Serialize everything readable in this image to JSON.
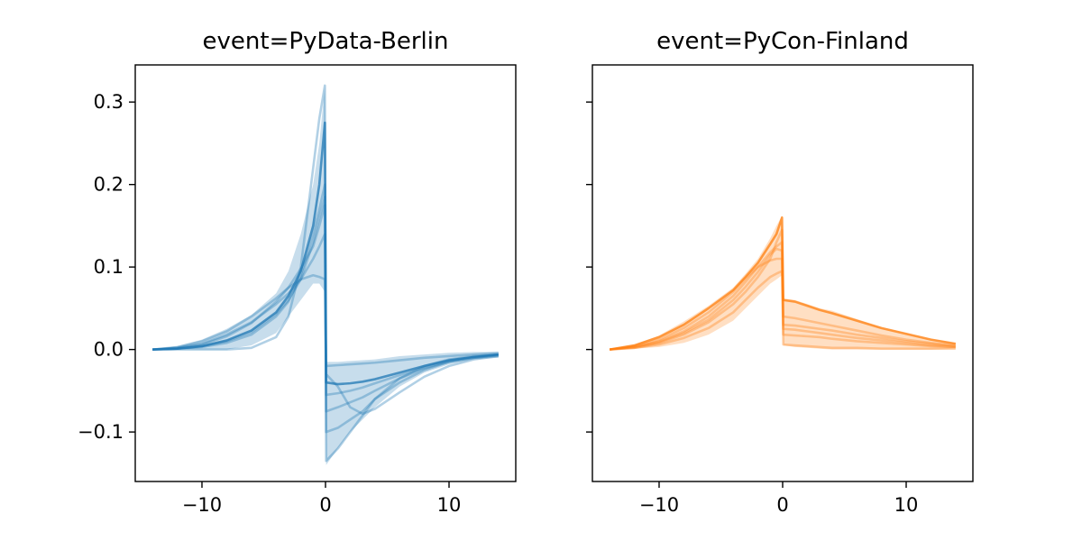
{
  "chart_data": [
    {
      "type": "line",
      "title": "event=PyData-Berlin",
      "xlabel": "",
      "ylabel": "",
      "color": "#1f77b4",
      "xlim": [
        -15.4,
        15.4
      ],
      "ylim": [
        -0.16,
        0.345
      ],
      "xticks": [
        -10,
        0,
        10
      ],
      "xtick_labels": [
        "−10",
        "0",
        "10"
      ],
      "yticks": [
        -0.1,
        0.0,
        0.1,
        0.2,
        0.3
      ],
      "ytick_labels": [
        "−0.1",
        "0.0",
        "0.1",
        "0.2",
        "0.3"
      ],
      "band": {
        "x": [
          -14,
          -12,
          -10,
          -8,
          -6,
          -4,
          -3,
          -2,
          -1,
          -0.5,
          -0.05,
          0.05,
          1,
          2,
          3,
          4,
          6,
          8,
          10,
          12,
          14
        ],
        "lower": [
          0,
          0,
          0,
          0,
          0.005,
          0.02,
          0.04,
          0.06,
          0.08,
          0.08,
          0.07,
          -0.14,
          -0.12,
          -0.1,
          -0.085,
          -0.07,
          -0.045,
          -0.028,
          -0.018,
          -0.012,
          -0.01
        ],
        "upper": [
          0.0005,
          0.004,
          0.012,
          0.025,
          0.042,
          0.068,
          0.095,
          0.14,
          0.2,
          0.25,
          0.32,
          -0.015,
          -0.015,
          -0.014,
          -0.013,
          -0.012,
          -0.008,
          -0.006,
          -0.004,
          -0.003,
          -0.003
        ]
      },
      "series": [
        {
          "x": [
            -14,
            -12,
            -10,
            -8,
            -6,
            -4,
            -3,
            -2,
            -1,
            -0.5,
            -0.05,
            0.05,
            1,
            2,
            3,
            4,
            6,
            8,
            10,
            12,
            14
          ],
          "y": [
            0,
            0.001,
            0.004,
            0.011,
            0.023,
            0.045,
            0.065,
            0.095,
            0.15,
            0.2,
            0.275,
            -0.04,
            -0.042,
            -0.041,
            -0.039,
            -0.036,
            -0.028,
            -0.02,
            -0.013,
            -0.009,
            -0.006
          ]
        },
        {
          "x": [
            -14,
            -12,
            -10,
            -8,
            -6,
            -4,
            -3,
            -2,
            -1,
            -0.5,
            -0.05,
            0.05,
            1,
            2,
            3,
            4,
            6,
            8,
            10,
            12,
            14
          ],
          "y": [
            0,
            0,
            0,
            0,
            0.002,
            0.015,
            0.04,
            0.1,
            0.22,
            0.28,
            0.32,
            -0.135,
            -0.12,
            -0.1,
            -0.08,
            -0.06,
            -0.035,
            -0.02,
            -0.012,
            -0.008,
            -0.006
          ]
        },
        {
          "x": [
            -14,
            -12,
            -10,
            -8,
            -6,
            -4,
            -3,
            -2,
            -1,
            -0.5,
            -0.05,
            0.05,
            1,
            2,
            3,
            4,
            6,
            8,
            10,
            12,
            14
          ],
          "y": [
            0,
            0.003,
            0.01,
            0.022,
            0.04,
            0.062,
            0.075,
            0.085,
            0.09,
            0.088,
            0.085,
            -0.02,
            -0.019,
            -0.018,
            -0.017,
            -0.016,
            -0.013,
            -0.01,
            -0.008,
            -0.006,
            -0.004
          ]
        },
        {
          "x": [
            -14,
            -12,
            -10,
            -8,
            -6,
            -4,
            -3,
            -2,
            -1,
            -0.5,
            -0.05,
            0.05,
            1,
            2,
            3,
            4,
            6,
            8,
            10,
            12,
            14
          ],
          "y": [
            0,
            0.002,
            0.006,
            0.016,
            0.032,
            0.058,
            0.075,
            0.098,
            0.125,
            0.15,
            0.175,
            -0.075,
            -0.07,
            -0.064,
            -0.058,
            -0.05,
            -0.035,
            -0.023,
            -0.015,
            -0.01,
            -0.007
          ]
        },
        {
          "x": [
            -14,
            -12,
            -10,
            -8,
            -6,
            -4,
            -3,
            -2,
            -1,
            -0.5,
            -0.05,
            0.05,
            1,
            2,
            3,
            4,
            6,
            8,
            10,
            12,
            14
          ],
          "y": [
            0,
            0.001,
            0.003,
            0.008,
            0.018,
            0.04,
            0.058,
            0.09,
            0.14,
            0.17,
            0.2,
            -0.1,
            -0.095,
            -0.085,
            -0.075,
            -0.06,
            -0.04,
            -0.025,
            -0.015,
            -0.01,
            -0.007
          ]
        },
        {
          "x": [
            -14,
            -12,
            -10,
            -8,
            -6,
            -4,
            -3,
            -2,
            -1,
            -0.5,
            -0.05,
            0.05,
            1,
            2,
            3,
            4,
            6,
            8,
            10,
            12,
            14
          ],
          "y": [
            0,
            0.002,
            0.007,
            0.018,
            0.033,
            0.055,
            0.068,
            0.085,
            0.11,
            0.125,
            0.14,
            -0.055,
            -0.053,
            -0.05,
            -0.046,
            -0.041,
            -0.031,
            -0.022,
            -0.014,
            -0.009,
            -0.006
          ]
        },
        {
          "x": [
            -14,
            -12,
            -10,
            -8,
            -6,
            -4,
            -3,
            -2,
            -1,
            -0.5,
            -0.05,
            0.05,
            1,
            2,
            3,
            4,
            6,
            8,
            10,
            12,
            14
          ],
          "y": [
            0,
            0.001,
            0.004,
            0.01,
            0.021,
            0.043,
            0.06,
            0.085,
            0.13,
            0.16,
            0.185,
            -0.03,
            -0.045,
            -0.07,
            -0.078,
            -0.072,
            -0.052,
            -0.033,
            -0.02,
            -0.012,
            -0.008
          ]
        }
      ]
    },
    {
      "type": "line",
      "title": "event=PyCon-Finland",
      "xlabel": "",
      "ylabel": "",
      "color": "#ff7f0e",
      "xlim": [
        -15.4,
        15.4
      ],
      "ylim": [
        -0.16,
        0.345
      ],
      "xticks": [
        -10,
        0,
        10
      ],
      "xtick_labels": [
        "−10",
        "0",
        "10"
      ],
      "yticks": [
        -0.1,
        0.0,
        0.1,
        0.2,
        0.3
      ],
      "ytick_labels": [],
      "band": {
        "x": [
          -14,
          -12,
          -10,
          -8,
          -6,
          -4,
          -3,
          -2,
          -1,
          -0.5,
          -0.05,
          0.05,
          1,
          2,
          3,
          4,
          6,
          8,
          10,
          12,
          14
        ],
        "lower": [
          0,
          0.001,
          0.003,
          0.008,
          0.018,
          0.035,
          0.05,
          0.065,
          0.08,
          0.085,
          0.09,
          0.005,
          0.003,
          0.002,
          0.001,
          0,
          0,
          0,
          0,
          0,
          0.001
        ],
        "upper": [
          0.001,
          0.006,
          0.017,
          0.034,
          0.053,
          0.075,
          0.092,
          0.11,
          0.135,
          0.15,
          0.162,
          0.062,
          0.06,
          0.055,
          0.05,
          0.047,
          0.037,
          0.027,
          0.02,
          0.013,
          0.008
        ]
      },
      "series": [
        {
          "x": [
            -14,
            -12,
            -10,
            -8,
            -6,
            -4,
            -3,
            -2,
            -1,
            -0.5,
            -0.05,
            0.05,
            1,
            2,
            3,
            4,
            6,
            8,
            10,
            12,
            14
          ],
          "y": [
            0,
            0.005,
            0.015,
            0.03,
            0.05,
            0.072,
            0.088,
            0.105,
            0.128,
            0.14,
            0.16,
            0.06,
            0.058,
            0.053,
            0.048,
            0.044,
            0.035,
            0.026,
            0.019,
            0.012,
            0.007
          ]
        },
        {
          "x": [
            -14,
            -12,
            -10,
            -8,
            -6,
            -4,
            -3,
            -2,
            -1,
            -0.5,
            -0.05,
            0.05,
            1,
            2,
            3,
            4,
            6,
            8,
            10,
            12,
            14
          ],
          "y": [
            0,
            0.002,
            0.006,
            0.014,
            0.026,
            0.045,
            0.06,
            0.075,
            0.088,
            0.092,
            0.095,
            0.006,
            0.005,
            0.004,
            0.003,
            0.002,
            0.002,
            0.001,
            0.001,
            0.001,
            0.001
          ]
        },
        {
          "x": [
            -14,
            -12,
            -10,
            -8,
            -6,
            -4,
            -3,
            -2,
            -1,
            -0.5,
            -0.05,
            0.05,
            1,
            2,
            3,
            4,
            6,
            8,
            10,
            12,
            14
          ],
          "y": [
            0,
            0.003,
            0.01,
            0.022,
            0.04,
            0.065,
            0.082,
            0.1,
            0.118,
            0.125,
            0.13,
            0.03,
            0.029,
            0.027,
            0.025,
            0.023,
            0.018,
            0.014,
            0.01,
            0.007,
            0.004
          ]
        },
        {
          "x": [
            -14,
            -12,
            -10,
            -8,
            -6,
            -4,
            -3,
            -2,
            -1,
            -0.5,
            -0.05,
            0.05,
            1,
            2,
            3,
            4,
            6,
            8,
            10,
            12,
            14
          ],
          "y": [
            0,
            0.004,
            0.012,
            0.026,
            0.045,
            0.07,
            0.086,
            0.1,
            0.108,
            0.11,
            0.11,
            0.018,
            0.017,
            0.016,
            0.015,
            0.013,
            0.01,
            0.008,
            0.006,
            0.004,
            0.003
          ]
        },
        {
          "x": [
            -14,
            -12,
            -10,
            -8,
            -6,
            -4,
            -3,
            -2,
            -1,
            -0.5,
            -0.05,
            0.05,
            1,
            2,
            3,
            4,
            6,
            8,
            10,
            12,
            14
          ],
          "y": [
            0,
            0.002,
            0.008,
            0.018,
            0.033,
            0.055,
            0.07,
            0.088,
            0.11,
            0.13,
            0.145,
            0.04,
            0.038,
            0.035,
            0.032,
            0.029,
            0.023,
            0.017,
            0.012,
            0.008,
            0.005
          ]
        },
        {
          "x": [
            -14,
            -12,
            -10,
            -8,
            -6,
            -4,
            -3,
            -2,
            -1,
            -0.5,
            -0.05,
            0.05,
            1,
            2,
            3,
            4,
            6,
            8,
            10,
            12,
            14
          ],
          "y": [
            0,
            0.003,
            0.009,
            0.02,
            0.036,
            0.06,
            0.076,
            0.094,
            0.115,
            0.122,
            0.12,
            0.025,
            0.024,
            0.022,
            0.02,
            0.018,
            0.014,
            0.011,
            0.008,
            0.005,
            0.003
          ]
        }
      ]
    }
  ]
}
